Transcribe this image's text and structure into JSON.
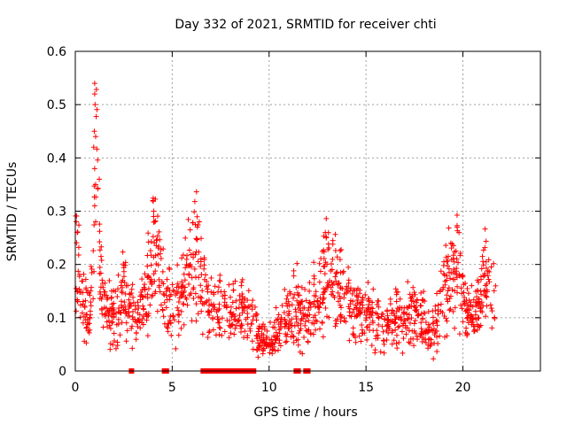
{
  "chart_data": {
    "type": "scatter",
    "title": "Day 332 of 2021, SRMTID for receiver chti",
    "xlabel": "GPS time / hours",
    "ylabel": "SRMTID / TECUs",
    "xlim": [
      0,
      24
    ],
    "ylim": [
      0,
      0.6
    ],
    "xticks": [
      0,
      5,
      10,
      15,
      20
    ],
    "yticks": [
      0,
      0.1,
      0.2,
      0.3,
      0.4,
      0.5,
      0.6
    ],
    "xtick_labels": [
      "0",
      "5",
      "10",
      "15",
      "20"
    ],
    "ytick_labels": [
      "0",
      "0.1",
      "0.2",
      "0.3",
      "0.4",
      "0.5",
      "0.6"
    ],
    "grid": true,
    "marker": "plus",
    "color": "#ff0000",
    "series": [
      {
        "name": "SRMTID",
        "x_range": [
          0,
          21.7
        ],
        "envelope": [
          [
            0.0,
            0.22
          ],
          [
            0.3,
            0.17
          ],
          [
            0.5,
            0.12
          ],
          [
            0.7,
            0.1
          ],
          [
            0.9,
            0.17
          ],
          [
            1.1,
            0.4
          ],
          [
            1.3,
            0.2
          ],
          [
            1.5,
            0.11
          ],
          [
            2.0,
            0.1
          ],
          [
            2.5,
            0.15
          ],
          [
            3.0,
            0.1
          ],
          [
            3.5,
            0.11
          ],
          [
            3.9,
            0.2
          ],
          [
            4.1,
            0.25
          ],
          [
            4.4,
            0.17
          ],
          [
            4.7,
            0.12
          ],
          [
            5.0,
            0.12
          ],
          [
            5.5,
            0.13
          ],
          [
            6.0,
            0.2
          ],
          [
            6.3,
            0.22
          ],
          [
            6.6,
            0.16
          ],
          [
            7.0,
            0.12
          ],
          [
            7.5,
            0.11
          ],
          [
            8.0,
            0.1
          ],
          [
            8.5,
            0.12
          ],
          [
            9.0,
            0.1
          ],
          [
            9.5,
            0.06
          ],
          [
            10.0,
            0.05
          ],
          [
            10.5,
            0.08
          ],
          [
            11.0,
            0.1
          ],
          [
            11.5,
            0.12
          ],
          [
            12.0,
            0.1
          ],
          [
            12.5,
            0.14
          ],
          [
            13.0,
            0.18
          ],
          [
            13.5,
            0.15
          ],
          [
            14.0,
            0.13
          ],
          [
            14.5,
            0.12
          ],
          [
            15.0,
            0.11
          ],
          [
            15.5,
            0.09
          ],
          [
            16.0,
            0.08
          ],
          [
            16.5,
            0.1
          ],
          [
            17.0,
            0.1
          ],
          [
            17.5,
            0.11
          ],
          [
            18.0,
            0.09
          ],
          [
            18.5,
            0.08
          ],
          [
            19.0,
            0.15
          ],
          [
            19.5,
            0.18
          ],
          [
            19.7,
            0.23
          ],
          [
            20.0,
            0.13
          ],
          [
            20.5,
            0.1
          ],
          [
            21.0,
            0.14
          ],
          [
            21.3,
            0.18
          ],
          [
            21.7,
            0.13
          ]
        ],
        "outliers": [
          [
            1.0,
            0.54
          ],
          [
            1.0,
            0.52
          ],
          [
            1.02,
            0.5
          ],
          [
            0.98,
            0.45
          ],
          [
            1.05,
            0.44
          ],
          [
            0.95,
            0.42
          ],
          [
            1.0,
            0.38
          ],
          [
            1.05,
            0.35
          ],
          [
            1.0,
            0.31
          ],
          [
            1.05,
            0.28
          ],
          [
            4.0,
            0.32
          ],
          [
            4.05,
            0.3
          ],
          [
            4.1,
            0.28
          ],
          [
            6.4,
            0.28
          ],
          [
            6.3,
            0.27
          ],
          [
            12.9,
            0.26
          ],
          [
            12.95,
            0.25
          ],
          [
            19.7,
            0.27
          ],
          [
            19.8,
            0.26
          ],
          [
            0.05,
            0.28
          ],
          [
            0.1,
            0.26
          ]
        ],
        "zero_points": [
          2.9,
          4.6,
          4.7,
          6.6,
          6.7,
          6.8,
          6.9,
          7.0,
          7.1,
          7.2,
          7.3,
          7.5,
          7.6,
          7.8,
          7.9,
          8.0,
          8.2,
          8.4,
          8.5,
          8.6,
          8.8,
          9.0,
          9.2,
          11.4,
          11.5,
          11.9,
          12.0
        ]
      }
    ]
  }
}
